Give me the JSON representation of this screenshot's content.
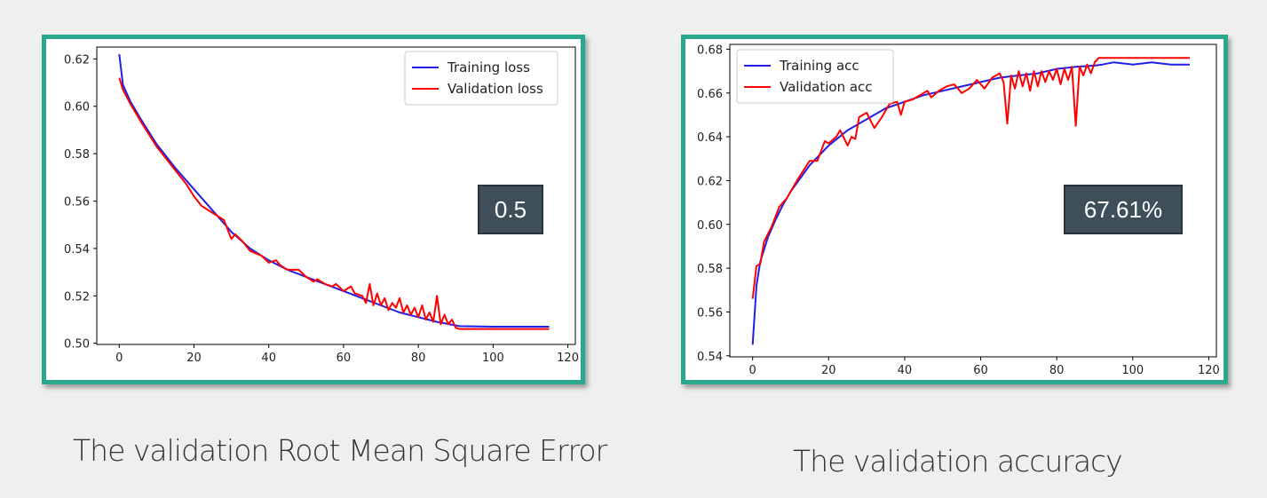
{
  "chart_data": [
    {
      "type": "line",
      "title": "",
      "xlabel": "",
      "ylabel": "",
      "xlim": [
        -6,
        122
      ],
      "ylim": [
        0.4995,
        0.625
      ],
      "xticks": [
        0,
        20,
        40,
        60,
        80,
        100,
        120
      ],
      "yticks": [
        0.5,
        0.52,
        0.54,
        0.56,
        0.58,
        0.6,
        0.62
      ],
      "ytick_decimals": 2,
      "legend_position": "top-right",
      "series": [
        {
          "name": "Training loss",
          "color": "#1f1fe6",
          "x": [
            0,
            1,
            3,
            6,
            10,
            15,
            20,
            25,
            30,
            35,
            40,
            45,
            50,
            55,
            60,
            65,
            70,
            75,
            80,
            85,
            90,
            91,
            100,
            115
          ],
          "y": [
            0.622,
            0.609,
            0.602,
            0.594,
            0.584,
            0.574,
            0.565,
            0.556,
            0.547,
            0.54,
            0.535,
            0.531,
            0.528,
            0.525,
            0.522,
            0.519,
            0.516,
            0.513,
            0.511,
            0.509,
            0.5075,
            0.5072,
            0.507,
            0.507
          ]
        },
        {
          "name": "Validation loss",
          "color": "#ff0000",
          "x": [
            0,
            1,
            3,
            6,
            10,
            15,
            18,
            20,
            22,
            25,
            27,
            28,
            30,
            31,
            33,
            35,
            38,
            40,
            42,
            43,
            45,
            48,
            50,
            52,
            53,
            55,
            57,
            58,
            60,
            62,
            63,
            65,
            66,
            67,
            68,
            69,
            70,
            71,
            72,
            73,
            74,
            75,
            76,
            77,
            78,
            79,
            80,
            81,
            82,
            83,
            84,
            85,
            86,
            87,
            88,
            89,
            90,
            91,
            100,
            115
          ],
          "y": [
            0.612,
            0.607,
            0.601,
            0.593,
            0.583,
            0.573,
            0.567,
            0.562,
            0.558,
            0.555,
            0.553,
            0.552,
            0.544,
            0.546,
            0.543,
            0.539,
            0.537,
            0.534,
            0.535,
            0.533,
            0.531,
            0.531,
            0.528,
            0.526,
            0.527,
            0.525,
            0.524,
            0.525,
            0.522,
            0.524,
            0.521,
            0.52,
            0.517,
            0.525,
            0.516,
            0.521,
            0.516,
            0.519,
            0.514,
            0.517,
            0.515,
            0.519,
            0.513,
            0.516,
            0.512,
            0.515,
            0.511,
            0.516,
            0.51,
            0.513,
            0.509,
            0.52,
            0.508,
            0.512,
            0.508,
            0.51,
            0.5065,
            0.506,
            0.506,
            0.506
          ]
        }
      ]
    },
    {
      "type": "line",
      "title": "",
      "xlabel": "",
      "ylabel": "",
      "xlim": [
        -6,
        122
      ],
      "ylim": [
        0.5395,
        0.6822
      ],
      "xticks": [
        0,
        20,
        40,
        60,
        80,
        100,
        120
      ],
      "yticks": [
        0.54,
        0.56,
        0.58,
        0.6,
        0.62,
        0.64,
        0.66,
        0.68
      ],
      "ytick_decimals": 2,
      "legend_position": "top-left",
      "series": [
        {
          "name": "Training acc",
          "color": "#1f1fe6",
          "x": [
            0,
            1,
            2,
            4,
            6,
            8,
            10,
            15,
            20,
            25,
            30,
            35,
            40,
            45,
            50,
            55,
            60,
            65,
            70,
            75,
            80,
            85,
            90,
            92,
            95,
            100,
            105,
            110,
            115
          ],
          "y": [
            0.545,
            0.572,
            0.583,
            0.594,
            0.602,
            0.609,
            0.615,
            0.627,
            0.636,
            0.643,
            0.648,
            0.653,
            0.656,
            0.659,
            0.661,
            0.663,
            0.665,
            0.667,
            0.668,
            0.669,
            0.671,
            0.672,
            0.6725,
            0.673,
            0.674,
            0.673,
            0.674,
            0.673,
            0.673
          ]
        },
        {
          "name": "Validation acc",
          "color": "#ff0000",
          "x": [
            0,
            1,
            2,
            3,
            5,
            7,
            9,
            12,
            15,
            17,
            19,
            20,
            22,
            23,
            25,
            26,
            27,
            28,
            30,
            32,
            34,
            36,
            38,
            39,
            40,
            42,
            44,
            46,
            47,
            49,
            51,
            53,
            55,
            57,
            59,
            61,
            63,
            65,
            66,
            67,
            68,
            69,
            70,
            71,
            72,
            73,
            74,
            75,
            76,
            77,
            78,
            79,
            80,
            81,
            82,
            83,
            84,
            85,
            86,
            87,
            88,
            89,
            90,
            91,
            100,
            115
          ],
          "y": [
            0.566,
            0.581,
            0.582,
            0.592,
            0.599,
            0.608,
            0.612,
            0.621,
            0.629,
            0.629,
            0.638,
            0.637,
            0.64,
            0.643,
            0.636,
            0.64,
            0.639,
            0.649,
            0.651,
            0.644,
            0.649,
            0.655,
            0.656,
            0.65,
            0.656,
            0.657,
            0.659,
            0.661,
            0.658,
            0.661,
            0.663,
            0.664,
            0.66,
            0.662,
            0.666,
            0.662,
            0.667,
            0.669,
            0.665,
            0.646,
            0.668,
            0.662,
            0.67,
            0.663,
            0.669,
            0.661,
            0.67,
            0.663,
            0.67,
            0.665,
            0.67,
            0.666,
            0.671,
            0.664,
            0.671,
            0.666,
            0.672,
            0.645,
            0.672,
            0.668,
            0.673,
            0.669,
            0.674,
            0.676,
            0.676,
            0.676
          ]
        }
      ]
    }
  ],
  "badges": {
    "left": "0.5",
    "right": "67.61%"
  },
  "captions": {
    "left": "The validation Root Mean Square Error",
    "right": "The validation accuracy"
  }
}
